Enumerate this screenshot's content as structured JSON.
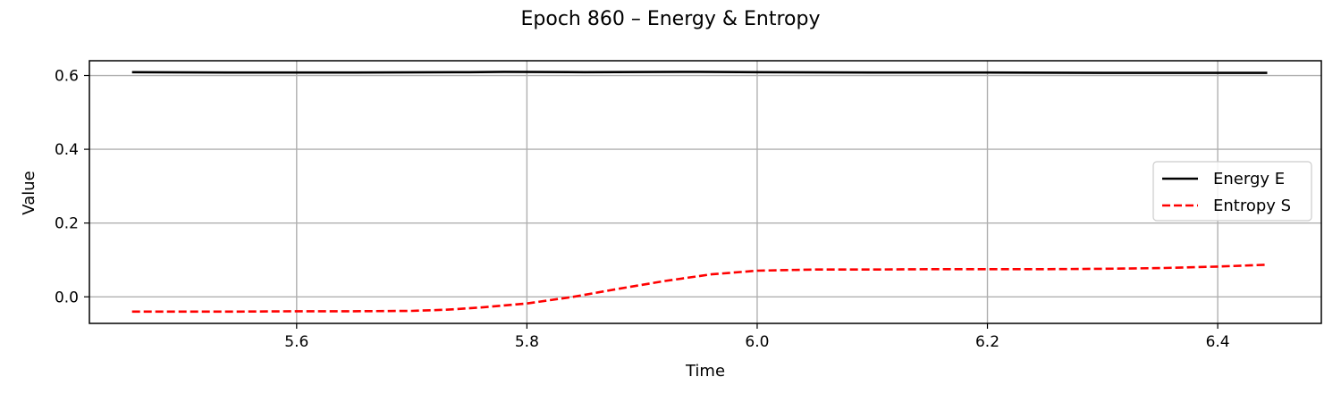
{
  "chart_data": {
    "type": "line",
    "title": "Epoch 860 – Energy & Entropy",
    "xlabel": "Time",
    "ylabel": "Value",
    "xlim": [
      5.42,
      6.49
    ],
    "ylim": [
      -0.072,
      0.64
    ],
    "xticks": [
      "5.6",
      "5.8",
      "6.0",
      "6.2",
      "6.4"
    ],
    "yticks": [
      "0.0",
      "0.2",
      "0.4",
      "0.6"
    ],
    "grid": true,
    "legend_position": "center-right",
    "series": [
      {
        "name": "Energy E",
        "color": "#000000",
        "dash": "solid",
        "x": [
          5.457,
          5.55,
          5.65,
          5.75,
          5.78,
          5.85,
          5.95,
          6.0,
          6.1,
          6.2,
          6.3,
          6.35,
          6.443
        ],
        "y": [
          0.609,
          0.608,
          0.608,
          0.609,
          0.61,
          0.609,
          0.61,
          0.609,
          0.608,
          0.608,
          0.607,
          0.607,
          0.607
        ]
      },
      {
        "name": "Entropy S",
        "color": "#ff0000",
        "dash": "dashed",
        "x": [
          5.457,
          5.5,
          5.55,
          5.6,
          5.65,
          5.7,
          5.73,
          5.76,
          5.8,
          5.84,
          5.88,
          5.92,
          5.96,
          6.0,
          6.05,
          6.1,
          6.15,
          6.2,
          6.25,
          6.3,
          6.35,
          6.4,
          6.443
        ],
        "y": [
          -0.04,
          -0.04,
          -0.04,
          -0.039,
          -0.039,
          -0.038,
          -0.035,
          -0.029,
          -0.018,
          0.0,
          0.022,
          0.043,
          0.061,
          0.071,
          0.074,
          0.074,
          0.075,
          0.075,
          0.075,
          0.076,
          0.078,
          0.082,
          0.087
        ]
      }
    ]
  }
}
